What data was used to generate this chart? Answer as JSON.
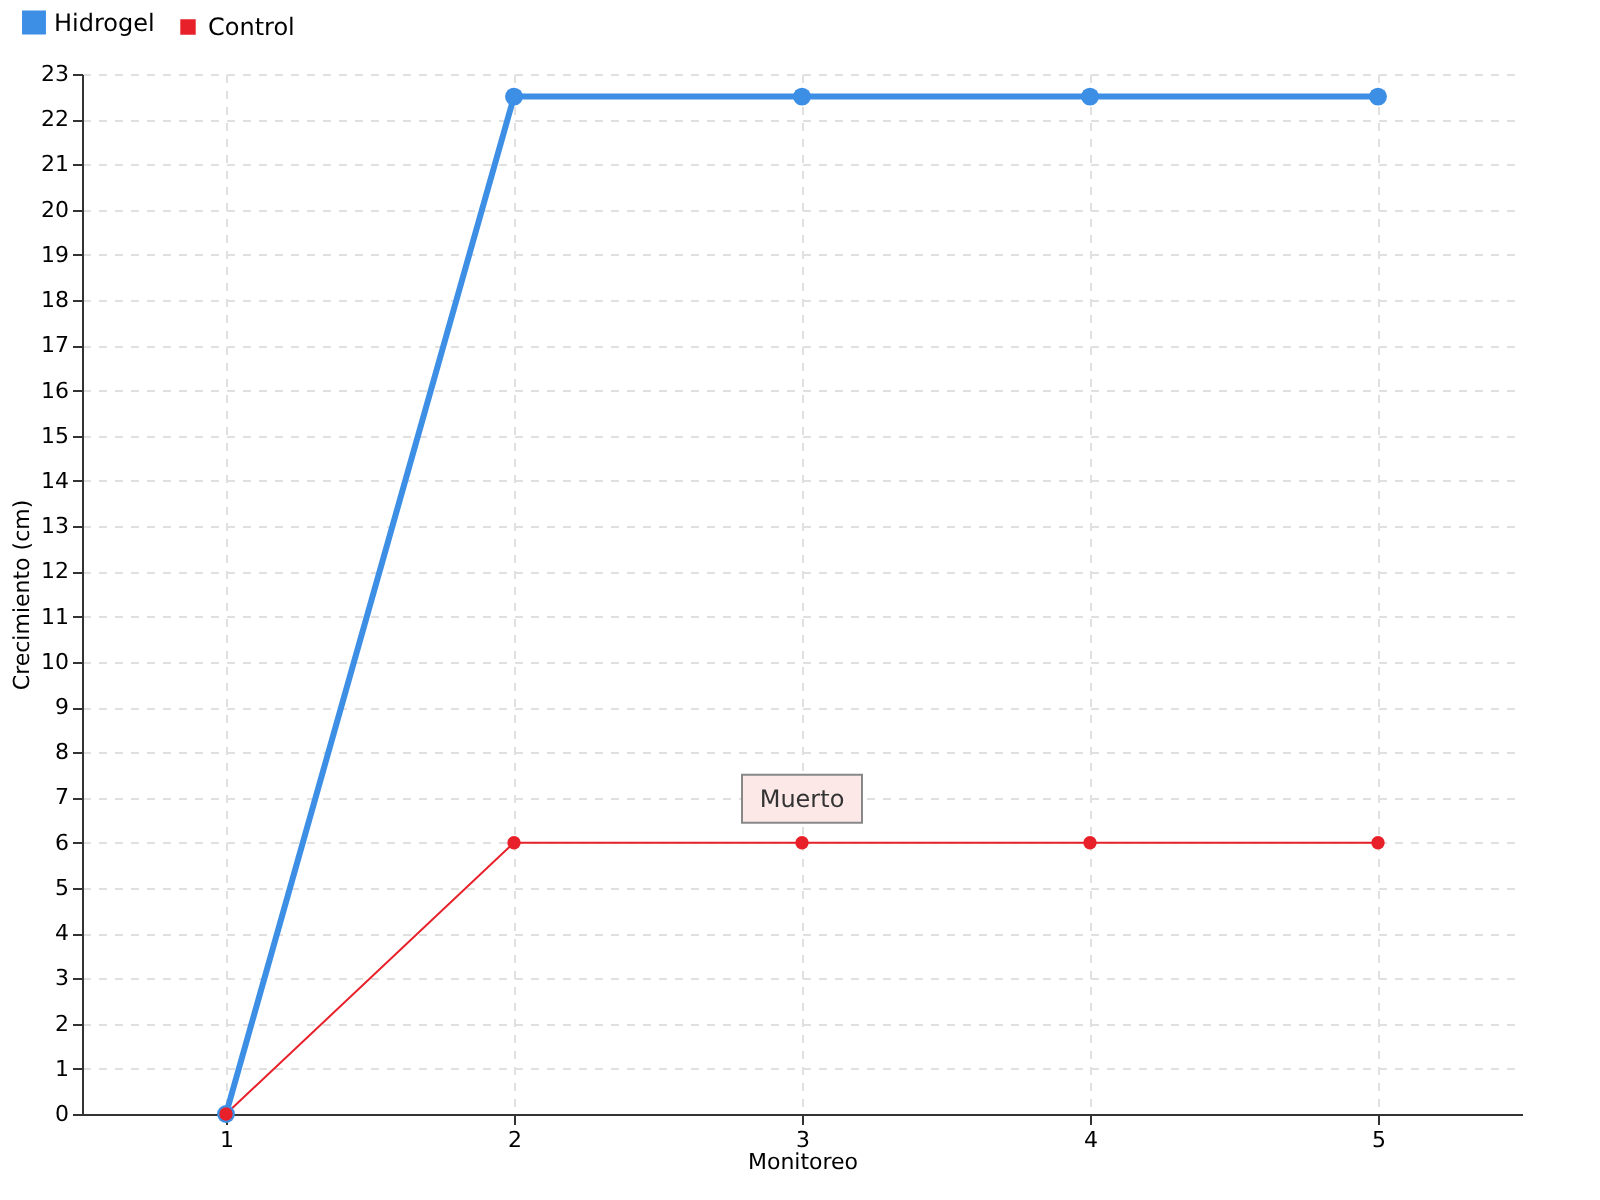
{
  "chart_data": {
    "type": "line",
    "xlabel": "Monitoreo",
    "ylabel": "Crecimiento (cm)",
    "x": [
      1,
      2,
      3,
      4,
      5
    ],
    "series": [
      {
        "name": "Hidrogel",
        "color": "#3d8fe6",
        "values": [
          0,
          22.5,
          22.5,
          22.5,
          22.5
        ]
      },
      {
        "name": "Control",
        "color": "#e8202a",
        "values": [
          0,
          6,
          6,
          6,
          6
        ]
      }
    ],
    "xlim": [
      0.5,
      5.5
    ],
    "xticks": [
      1,
      2,
      3,
      4,
      5
    ],
    "ylim": [
      0,
      23
    ],
    "yticks": [
      0,
      1,
      2,
      3,
      4,
      5,
      6,
      7,
      8,
      9,
      10,
      11,
      12,
      13,
      14,
      15,
      16,
      17,
      18,
      19,
      20,
      21,
      22,
      23
    ],
    "annotations": [
      {
        "text": "Muerto",
        "x": 3,
        "y": 6
      }
    ],
    "grid": true,
    "legend": "top left",
    "marker": "circle",
    "line_style": "solid"
  }
}
